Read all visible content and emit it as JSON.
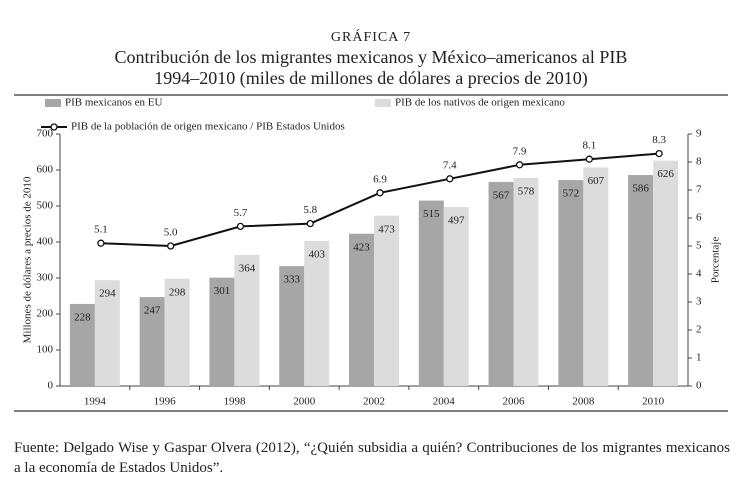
{
  "chart_data": {
    "type": "bar",
    "figure_label": "GRÁFICA 7",
    "title": "Contribución de los migrantes mexicanos y México–americanos al PIB",
    "subtitle": "1994–2010 (miles de millones de dólares a precios de 2010)",
    "y_label": "Millones de dólares a precios de 2010",
    "y2_label": "Porcentaje",
    "categories": [
      "1994",
      "1996",
      "1998",
      "2000",
      "2002",
      "2004",
      "2006",
      "2008",
      "2010"
    ],
    "series": [
      {
        "name": "PIB mexicanos en EU",
        "type": "bar",
        "color": "#a6a6a6",
        "values": [
          228,
          247,
          301,
          333,
          423,
          515,
          567,
          572,
          586
        ]
      },
      {
        "name": "PIB de los nativos de origen mexicano",
        "type": "bar",
        "color": "#dcdcdc",
        "values": [
          294,
          298,
          364,
          403,
          473,
          497,
          578,
          607,
          626
        ]
      },
      {
        "name": "PIB de la población de origen mexicano / PIB Estados Unidos",
        "type": "line",
        "axis": "y2",
        "color": "#111111",
        "values": [
          5.1,
          5.0,
          5.7,
          5.8,
          6.9,
          7.4,
          7.9,
          8.1,
          8.3
        ],
        "value_labels": [
          "5.1",
          "5.0",
          "5.7",
          "5.8",
          "6.9",
          "7.4",
          "7.9",
          "8.1",
          "8.3"
        ]
      }
    ],
    "ylim": [
      0,
      700
    ],
    "yticks": [
      0,
      100,
      200,
      300,
      400,
      500,
      600,
      700
    ],
    "y2lim": [
      0,
      9
    ],
    "y2ticks": [
      0,
      1,
      2,
      3,
      4,
      5,
      6,
      7,
      8,
      9
    ],
    "grid": false,
    "source": "Fuente: Delgado Wise y Gaspar Olvera (2012), “¿Quién subsidia a quién? Contribuciones de los migrantes mexicanos a la economía de Estados Unidos”."
  }
}
